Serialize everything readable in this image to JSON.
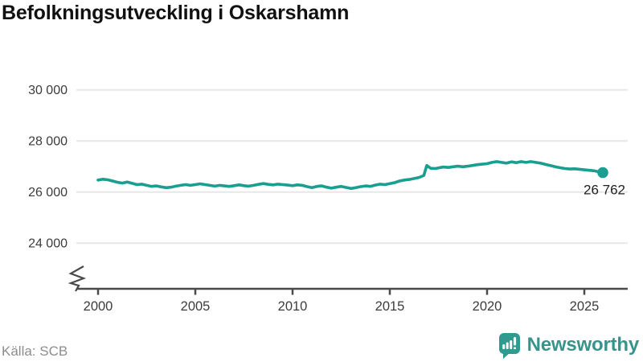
{
  "header": {
    "title": "Befolkningsutveckling i Oskarshamn"
  },
  "footer": {
    "source": "Källa: SCB",
    "brand_name": "Newsworthy"
  },
  "colors": {
    "line": "#1a9e8f",
    "end_dot": "#1a9e8f",
    "gridline": "#e7e7e7",
    "axis": "#4a4a4a",
    "tick_text": "#3c3c3c",
    "end_label_text": "#1f1f1f",
    "title_text": "#111111",
    "source_text": "#8d8d8d",
    "brand_teal": "#2f9a8f"
  },
  "chart_data": {
    "type": "line",
    "title": "Befolkningsutveckling i Oskarshamn",
    "xlabel": "",
    "ylabel": "",
    "source": "SCB",
    "legend": "none",
    "grid": "horizontal",
    "axis_break_bottom_left": true,
    "x_ticks": [
      2000,
      2005,
      2010,
      2015,
      2020,
      2025
    ],
    "y_ticks": [
      {
        "value": 30000,
        "label": "30 000"
      },
      {
        "value": 28000,
        "label": "28 000"
      },
      {
        "value": 26000,
        "label": "26 000"
      },
      {
        "value": 24000,
        "label": "24 000"
      }
    ],
    "x_range_years": [
      2000,
      2026
    ],
    "ylim_display": [
      23200,
      30600
    ],
    "end_point": {
      "x": 2025.95,
      "value": 26762,
      "label": "26 762"
    },
    "series": [
      {
        "name": "Befolkning",
        "color": "#1a9e8f",
        "points": [
          [
            2000.0,
            26470
          ],
          [
            2000.25,
            26500
          ],
          [
            2000.5,
            26480
          ],
          [
            2000.75,
            26430
          ],
          [
            2001.0,
            26380
          ],
          [
            2001.25,
            26350
          ],
          [
            2001.5,
            26390
          ],
          [
            2001.75,
            26340
          ],
          [
            2002.0,
            26290
          ],
          [
            2002.25,
            26310
          ],
          [
            2002.5,
            26260
          ],
          [
            2002.75,
            26220
          ],
          [
            2003.0,
            26240
          ],
          [
            2003.25,
            26200
          ],
          [
            2003.5,
            26170
          ],
          [
            2003.75,
            26190
          ],
          [
            2004.0,
            26230
          ],
          [
            2004.25,
            26260
          ],
          [
            2004.5,
            26290
          ],
          [
            2004.75,
            26260
          ],
          [
            2005.0,
            26290
          ],
          [
            2005.25,
            26320
          ],
          [
            2005.5,
            26290
          ],
          [
            2005.75,
            26260
          ],
          [
            2006.0,
            26230
          ],
          [
            2006.25,
            26260
          ],
          [
            2006.5,
            26240
          ],
          [
            2006.75,
            26220
          ],
          [
            2007.0,
            26250
          ],
          [
            2007.25,
            26280
          ],
          [
            2007.5,
            26250
          ],
          [
            2007.75,
            26230
          ],
          [
            2008.0,
            26260
          ],
          [
            2008.25,
            26300
          ],
          [
            2008.5,
            26330
          ],
          [
            2008.75,
            26300
          ],
          [
            2009.0,
            26280
          ],
          [
            2009.25,
            26310
          ],
          [
            2009.5,
            26290
          ],
          [
            2009.75,
            26270
          ],
          [
            2010.0,
            26250
          ],
          [
            2010.25,
            26280
          ],
          [
            2010.5,
            26260
          ],
          [
            2010.75,
            26210
          ],
          [
            2011.0,
            26170
          ],
          [
            2011.25,
            26220
          ],
          [
            2011.5,
            26240
          ],
          [
            2011.75,
            26190
          ],
          [
            2012.0,
            26150
          ],
          [
            2012.25,
            26190
          ],
          [
            2012.5,
            26220
          ],
          [
            2012.75,
            26180
          ],
          [
            2013.0,
            26140
          ],
          [
            2013.25,
            26170
          ],
          [
            2013.5,
            26210
          ],
          [
            2013.75,
            26240
          ],
          [
            2014.0,
            26220
          ],
          [
            2014.25,
            26270
          ],
          [
            2014.5,
            26310
          ],
          [
            2014.75,
            26290
          ],
          [
            2015.0,
            26330
          ],
          [
            2015.25,
            26370
          ],
          [
            2015.5,
            26430
          ],
          [
            2015.75,
            26470
          ],
          [
            2016.0,
            26490
          ],
          [
            2016.25,
            26530
          ],
          [
            2016.5,
            26570
          ],
          [
            2016.75,
            26650
          ],
          [
            2016.9,
            27040
          ],
          [
            2017.1,
            26930
          ],
          [
            2017.35,
            26920
          ],
          [
            2017.6,
            26960
          ],
          [
            2017.75,
            26980
          ],
          [
            2018.0,
            26960
          ],
          [
            2018.25,
            26990
          ],
          [
            2018.5,
            27010
          ],
          [
            2018.75,
            26990
          ],
          [
            2019.0,
            27010
          ],
          [
            2019.25,
            27040
          ],
          [
            2019.5,
            27070
          ],
          [
            2019.75,
            27090
          ],
          [
            2020.0,
            27110
          ],
          [
            2020.25,
            27160
          ],
          [
            2020.5,
            27190
          ],
          [
            2020.75,
            27160
          ],
          [
            2021.0,
            27130
          ],
          [
            2021.25,
            27180
          ],
          [
            2021.5,
            27150
          ],
          [
            2021.75,
            27190
          ],
          [
            2022.0,
            27160
          ],
          [
            2022.25,
            27190
          ],
          [
            2022.5,
            27160
          ],
          [
            2022.75,
            27130
          ],
          [
            2023.0,
            27080
          ],
          [
            2023.25,
            27040
          ],
          [
            2023.5,
            26990
          ],
          [
            2023.75,
            26950
          ],
          [
            2024.0,
            26920
          ],
          [
            2024.25,
            26900
          ],
          [
            2024.5,
            26910
          ],
          [
            2024.75,
            26890
          ],
          [
            2025.0,
            26870
          ],
          [
            2025.25,
            26850
          ],
          [
            2025.5,
            26830
          ],
          [
            2025.75,
            26790
          ],
          [
            2025.95,
            26762
          ]
        ]
      }
    ]
  }
}
